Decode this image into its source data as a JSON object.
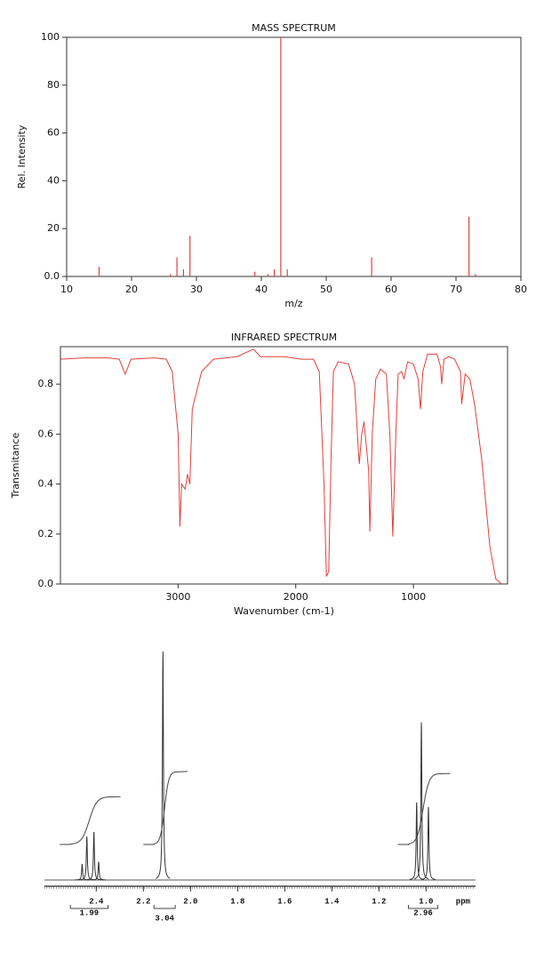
{
  "chart_data": [
    {
      "type": "stem",
      "title": "MASS SPECTRUM",
      "x_label": "m/z",
      "y_label": "Rel. Intensity",
      "x": [
        15,
        26,
        27,
        28,
        29,
        39,
        41,
        42,
        43,
        44,
        57,
        72,
        73
      ],
      "values": [
        4,
        1,
        8,
        3,
        17,
        2,
        1,
        3,
        100,
        3,
        8,
        25,
        1
      ],
      "color": "#e0403c",
      "xlim": [
        10,
        80
      ],
      "xticks": [
        10,
        20,
        30,
        40,
        50,
        60,
        70,
        80
      ],
      "ylim": [
        0,
        100
      ],
      "yticks": [
        {
          "value": 0,
          "label": "0.0"
        },
        20,
        40,
        60,
        80,
        100
      ]
    },
    {
      "type": "line",
      "title": "INFRARED SPECTRUM",
      "x_label": "Wavenumber (cm-1)",
      "y_label": "Transmitance",
      "x": [
        4000,
        3800,
        3600,
        3500,
        3450,
        3400,
        3200,
        3100,
        3050,
        3000,
        2985,
        2970,
        2940,
        2920,
        2900,
        2880,
        2800,
        2700,
        2500,
        2360,
        2300,
        2100,
        1950,
        1850,
        1800,
        1760,
        1740,
        1720,
        1700,
        1680,
        1640,
        1550,
        1500,
        1470,
        1460,
        1440,
        1420,
        1400,
        1380,
        1370,
        1350,
        1320,
        1280,
        1230,
        1200,
        1175,
        1150,
        1130,
        1100,
        1080,
        1050,
        1000,
        960,
        940,
        920,
        880,
        800,
        770,
        760,
        740,
        700,
        650,
        600,
        590,
        560,
        520,
        480,
        420,
        350,
        300,
        250
      ],
      "values": [
        0.9,
        0.905,
        0.905,
        0.9,
        0.84,
        0.9,
        0.905,
        0.9,
        0.85,
        0.6,
        0.23,
        0.4,
        0.38,
        0.44,
        0.4,
        0.7,
        0.85,
        0.9,
        0.91,
        0.94,
        0.91,
        0.91,
        0.9,
        0.9,
        0.85,
        0.4,
        0.03,
        0.05,
        0.5,
        0.85,
        0.89,
        0.88,
        0.8,
        0.55,
        0.48,
        0.6,
        0.65,
        0.55,
        0.45,
        0.21,
        0.6,
        0.82,
        0.86,
        0.84,
        0.6,
        0.19,
        0.6,
        0.84,
        0.85,
        0.82,
        0.89,
        0.88,
        0.82,
        0.7,
        0.85,
        0.92,
        0.92,
        0.87,
        0.8,
        0.9,
        0.91,
        0.9,
        0.85,
        0.72,
        0.84,
        0.82,
        0.72,
        0.5,
        0.15,
        0.02,
        0
      ],
      "color": "#e0403c",
      "xlim": [
        4000,
        200
      ],
      "xticks": [
        3000,
        2000,
        1000
      ],
      "ylim": [
        0,
        0.95
      ],
      "yticks": [
        {
          "value": 0,
          "label": "0.0"
        },
        0.2,
        0.4,
        0.6,
        0.8
      ]
    },
    {
      "type": "nmr",
      "x_unit": "ppm",
      "x": [
        2.46,
        2.44,
        2.41,
        2.39,
        2.117,
        1.04,
        1.02,
        0.99
      ],
      "values": [
        7,
        19,
        21,
        8,
        100,
        34,
        69,
        32
      ],
      "color": "#333333",
      "xlim": [
        2.62,
        0.79
      ],
      "xticks": [
        2.4,
        2.2,
        {
          "value": 2,
          "label": "2.0"
        },
        1.8,
        1.6,
        1.4,
        1.2,
        {
          "value": 1,
          "label": "1.0"
        }
      ],
      "ylim": [
        0,
        100
      ],
      "integrals": [
        {
          "value": 1.99,
          "from": 2.51,
          "to": 2.35
        },
        {
          "value": 3.04,
          "from": 2.155,
          "to": 2.065
        },
        {
          "value": 2.96,
          "from": 1.075,
          "to": 0.95
        }
      ]
    }
  ]
}
